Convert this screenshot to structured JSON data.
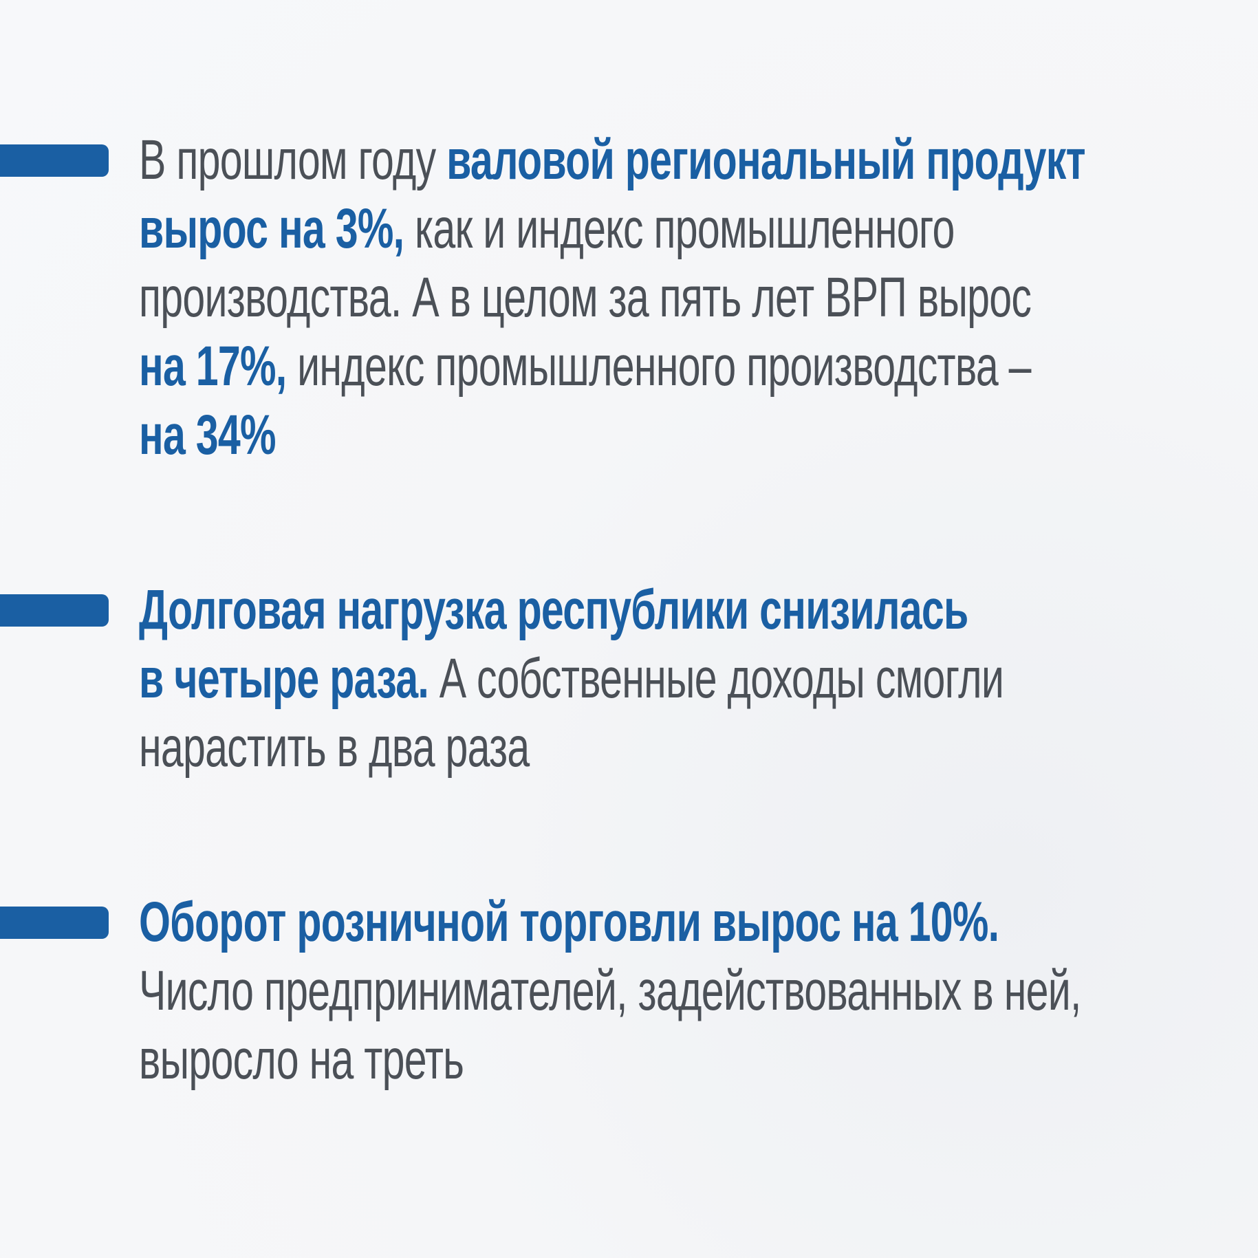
{
  "blocks": [
    {
      "lines": [
        [
          {
            "text": "В прошлом году ",
            "accent": false
          },
          {
            "text": "валовой региональный продукт",
            "accent": true
          }
        ],
        [
          {
            "text": "вырос на 3%,",
            "accent": true
          },
          {
            "text": " как и индекс промышленного",
            "accent": false
          }
        ],
        [
          {
            "text": "производства. А в целом за пять лет ВРП вырос",
            "accent": false
          }
        ],
        [
          {
            "text": "на 17%,",
            "accent": true
          },
          {
            "text": " индекс промышленного производства –",
            "accent": false
          }
        ],
        [
          {
            "text": "на 34%",
            "accent": true
          }
        ]
      ]
    },
    {
      "lines": [
        [
          {
            "text": "Долговая нагрузка республики снизилась",
            "accent": true
          }
        ],
        [
          {
            "text": "в четыре раза.",
            "accent": true
          },
          {
            "text": " А собственные доходы смогли",
            "accent": false
          }
        ],
        [
          {
            "text": "нарастить в два раза",
            "accent": false
          }
        ]
      ]
    },
    {
      "lines": [
        [
          {
            "text": "Оборот розничной торговли вырос на 10%.",
            "accent": true
          }
        ],
        [
          {
            "text": "Число предпринимателей, задействованных в ней,",
            "accent": false
          }
        ],
        [
          {
            "text": "выросло на треть",
            "accent": false
          }
        ]
      ]
    }
  ]
}
